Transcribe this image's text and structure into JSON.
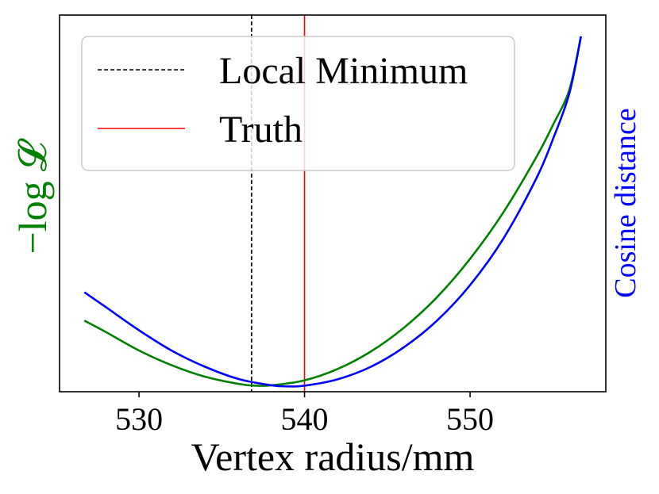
{
  "chart_data": {
    "type": "line",
    "title": "",
    "xlabel": "Vertex radius/mm",
    "ylabel_left": "−log 𝓛",
    "ylabel_right": "Cosine distance",
    "xlim": [
      525.2,
      558.2
    ],
    "ylim": [
      0,
      1.06
    ],
    "x_ticks": [
      530,
      540,
      550
    ],
    "x_tick_labels": [
      "530",
      "540",
      "550"
    ],
    "y_ticks_shown": false,
    "grid": false,
    "legend_position": "upper-left",
    "series": [
      {
        "name": "",
        "axis": "left",
        "color": "#008000",
        "style": "solid",
        "x": [
          526.7,
          528,
          530,
          532,
          534,
          536,
          537,
          538,
          540,
          542,
          544,
          546,
          548,
          550,
          552,
          554,
          555,
          556,
          556.7
        ],
        "y": [
          0.2,
          0.168,
          0.116,
          0.074,
          0.042,
          0.022,
          0.017,
          0.018,
          0.032,
          0.064,
          0.113,
          0.18,
          0.266,
          0.374,
          0.504,
          0.66,
          0.75,
          0.85,
          1.0
        ]
      },
      {
        "name": "",
        "axis": "right",
        "color": "#0000ff",
        "style": "solid",
        "x": [
          526.7,
          528,
          530,
          532,
          534,
          536,
          538,
          539,
          540,
          542,
          544,
          546,
          548,
          550,
          552,
          554,
          555,
          556,
          556.7
        ],
        "y": [
          0.28,
          0.238,
          0.173,
          0.115,
          0.07,
          0.036,
          0.018,
          0.015,
          0.017,
          0.035,
          0.07,
          0.125,
          0.2,
          0.3,
          0.43,
          0.6,
          0.71,
          0.84,
          1.0
        ]
      }
    ],
    "vlines": [
      {
        "name": "Local Minimum",
        "x": 536.8,
        "color": "#000000",
        "style": "dashed"
      },
      {
        "name": "Truth",
        "x": 540.0,
        "color": "#ff0000",
        "style": "solid"
      }
    ],
    "legend": [
      {
        "label": "Local Minimum",
        "color": "#000000",
        "style": "dashed"
      },
      {
        "label": "Truth",
        "color": "#ff0000",
        "style": "solid"
      }
    ]
  }
}
